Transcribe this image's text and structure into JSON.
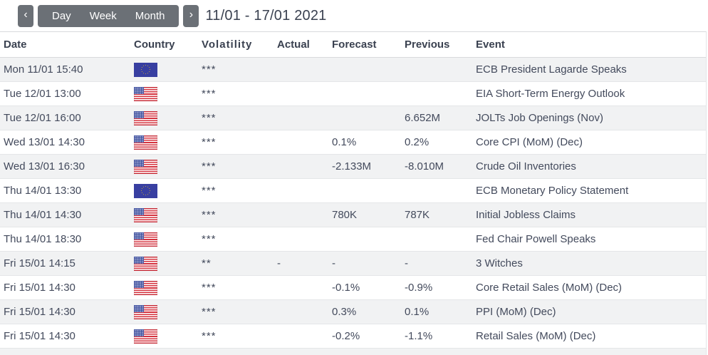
{
  "toolbar": {
    "prev_label": "‹",
    "next_label": "›",
    "views": [
      {
        "label": "Day"
      },
      {
        "label": "Week"
      },
      {
        "label": "Month"
      }
    ],
    "date_range": "11/01 - 17/01 2021"
  },
  "table": {
    "columns": {
      "date": "Date",
      "country": "Country",
      "volatility": "Volatility",
      "actual": "Actual",
      "forecast": "Forecast",
      "previous": "Previous",
      "event": "Event"
    },
    "rows": [
      {
        "date": "Mon 11/01 15:40",
        "country": "EU",
        "volatility": "***",
        "actual": "",
        "forecast": "",
        "previous": "",
        "event": "ECB President Lagarde Speaks"
      },
      {
        "date": "Tue 12/01 13:00",
        "country": "US",
        "volatility": "***",
        "actual": "",
        "forecast": "",
        "previous": "",
        "event": "EIA Short-Term Energy Outlook"
      },
      {
        "date": "Tue 12/01 16:00",
        "country": "US",
        "volatility": "***",
        "actual": "",
        "forecast": "",
        "previous": "6.652M",
        "event": "JOLTs Job Openings (Nov)"
      },
      {
        "date": "Wed 13/01 14:30",
        "country": "US",
        "volatility": "***",
        "actual": "",
        "forecast": "0.1%",
        "previous": "0.2%",
        "event": "Core CPI (MoM) (Dec)"
      },
      {
        "date": "Wed 13/01 16:30",
        "country": "US",
        "volatility": "***",
        "actual": "",
        "forecast": "-2.133M",
        "previous": "-8.010M",
        "event": "Crude Oil Inventories"
      },
      {
        "date": "Thu 14/01 13:30",
        "country": "EU",
        "volatility": "***",
        "actual": "",
        "forecast": "",
        "previous": "",
        "event": "ECB Monetary Policy Statement"
      },
      {
        "date": "Thu 14/01 14:30",
        "country": "US",
        "volatility": "***",
        "actual": "",
        "forecast": "780K",
        "previous": "787K",
        "event": "Initial Jobless Claims"
      },
      {
        "date": "Thu 14/01 18:30",
        "country": "US",
        "volatility": "***",
        "actual": "",
        "forecast": "",
        "previous": "",
        "event": "Fed Chair Powell Speaks"
      },
      {
        "date": "Fri 15/01 14:15",
        "country": "US",
        "volatility": "**",
        "actual": "-",
        "forecast": "-",
        "previous": "-",
        "event": "3 Witches"
      },
      {
        "date": "Fri 15/01 14:30",
        "country": "US",
        "volatility": "***",
        "actual": "",
        "forecast": "-0.1%",
        "previous": "-0.9%",
        "event": "Core Retail Sales (MoM) (Dec)"
      },
      {
        "date": "Fri 15/01 14:30",
        "country": "US",
        "volatility": "***",
        "actual": "",
        "forecast": "0.3%",
        "previous": "0.1%",
        "event": "PPI (MoM) (Dec)"
      },
      {
        "date": "Fri 15/01 14:30",
        "country": "US",
        "volatility": "***",
        "actual": "",
        "forecast": "-0.2%",
        "previous": "-1.1%",
        "event": "Retail Sales (MoM) (Dec)"
      }
    ]
  },
  "colors": {
    "btn_bg": "#6b7076",
    "text": "#434a5c",
    "head_text": "#3a4150",
    "stripe": "#f1f2f3",
    "row_border": "#e4e6e8",
    "top_border": "#d8dadc",
    "eu_blue": "#383fa1",
    "eu_star": "#e8c11c",
    "us_blue": "#3f51a0",
    "us_red": "#d5333f"
  }
}
